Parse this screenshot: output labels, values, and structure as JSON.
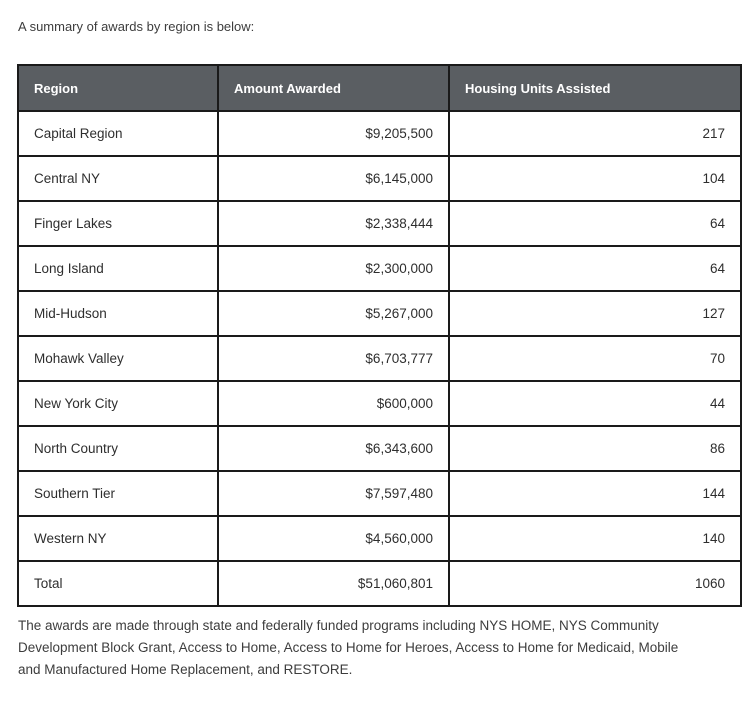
{
  "intro": {
    "text": "A summary of awards by region is below:"
  },
  "table": {
    "columns": [
      "Region",
      "Amount Awarded",
      "Housing Units Assisted"
    ],
    "rows": [
      {
        "region": "Capital Region",
        "amount": "$9,205,500",
        "units": "217"
      },
      {
        "region": "Central NY",
        "amount": "$6,145,000",
        "units": "104"
      },
      {
        "region": "Finger Lakes",
        "amount": "$2,338,444",
        "units": "64"
      },
      {
        "region": "Long Island",
        "amount": "$2,300,000",
        "units": "64"
      },
      {
        "region": "Mid-Hudson",
        "amount": "$5,267,000",
        "units": "127"
      },
      {
        "region": "Mohawk Valley",
        "amount": "$6,703,777",
        "units": "70"
      },
      {
        "region": "New York City",
        "amount": "$600,000",
        "units": "44"
      },
      {
        "region": "North Country",
        "amount": "$6,343,600",
        "units": "86"
      },
      {
        "region": "Southern Tier",
        "amount": "$7,597,480",
        "units": "144"
      },
      {
        "region": "Western NY",
        "amount": "$4,560,000",
        "units": "140"
      },
      {
        "region": "Total",
        "amount": "$51,060,801",
        "units": "1060"
      }
    ]
  },
  "footer": {
    "lines": [
      "The awards are made through state and federally funded programs including NYS HOME, NYS Community",
      "Development Block Grant, Access to Home, Access to Home for Heroes, Access to Home for Medicaid, Mobile",
      "and Manufactured Home Replacement, and RESTORE."
    ]
  },
  "colors": {
    "header_bg": "#5a5e62",
    "header_text": "#ffffff",
    "border": "#1a1a1a",
    "body_text": "#2e2e2e"
  }
}
